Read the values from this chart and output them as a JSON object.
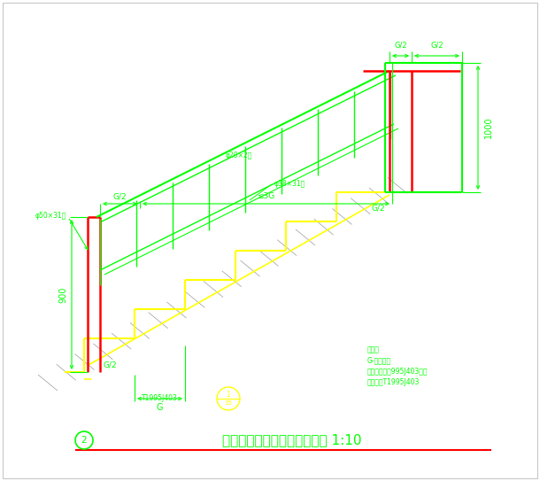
{
  "bg_color": "#ffffff",
  "G": "#00ff00",
  "R": "#ff0000",
  "Y": "#ffff00",
  "title_text": "公共部位楼梯踏步及栏杆详图 1:10",
  "title_num": "2",
  "fig_width": 6.1,
  "fig_height": 5.43,
  "outer_border_color": "#c8c8c8",
  "note1": "说明：",
  "note2": "G-踏步宽度",
  "note3": "栏杆做法参照995J403图集",
  "note4": "踏步做法T1995J403",
  "ann1": "φ50×31厅",
  "ann2": "φ38×31厅",
  "ann3": "φ20×2厅",
  "dim_G2": "G/2",
  "dim_3G": "≤3G",
  "dim_900": "900",
  "dim_1000": "1000",
  "dim_G": "G",
  "dim_G2b": "G/2",
  "ref_code": "T1995J403"
}
